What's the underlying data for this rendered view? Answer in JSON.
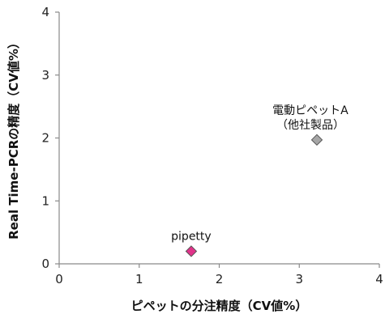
{
  "chart_data": {
    "type": "scatter",
    "xlabel": "ピペットの分注精度（CV値%）",
    "ylabel": "Real Time-PCRの精度（CV値%）",
    "xlim": [
      0,
      4
    ],
    "ylim": [
      0,
      4
    ],
    "xticks": [
      "0",
      "1",
      "2",
      "3",
      "4"
    ],
    "yticks": [
      "0",
      "1",
      "2",
      "3",
      "4"
    ],
    "grid": false,
    "points": [
      {
        "label_lines": [
          "pipetty"
        ],
        "x": 1.65,
        "y": 0.2,
        "color": "#e0338a",
        "marker": "diamond"
      },
      {
        "label_lines": [
          "電動ピペットA",
          "（他社製品）"
        ],
        "x": 3.22,
        "y": 1.97,
        "color": "#a6a6a6",
        "marker": "diamond"
      }
    ]
  }
}
